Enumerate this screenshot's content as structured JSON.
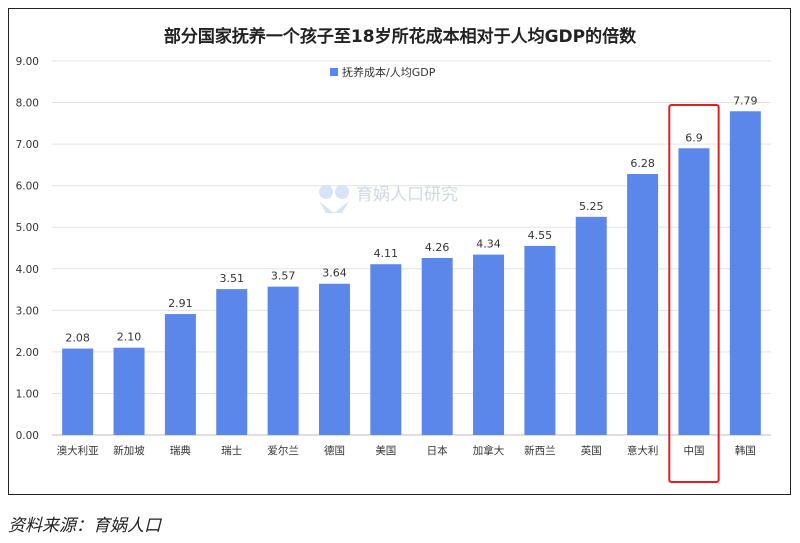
{
  "colors": {
    "bar": "#5b86ea",
    "highlight": "#e02020",
    "grid": "#e3e3e3",
    "axis": "#bdbdbd",
    "text": "#333333"
  },
  "chart_data": {
    "type": "bar",
    "title": "部分国家抚养一个孩子至18岁所花成本相对于人均GDP的倍数",
    "legend": "抚养成本/人均GDP",
    "legend_position": "top",
    "categories": [
      "澳大利亚",
      "新加坡",
      "瑞典",
      "瑞士",
      "爱尔兰",
      "德国",
      "美国",
      "日本",
      "加拿大",
      "新西兰",
      "英国",
      "意大利",
      "中国",
      "韩国"
    ],
    "values": [
      2.08,
      2.1,
      2.91,
      3.51,
      3.57,
      3.64,
      4.11,
      4.26,
      4.34,
      4.55,
      5.25,
      6.28,
      6.9,
      7.79
    ],
    "value_labels": [
      "2.08",
      "2.10",
      "2.91",
      "3.51",
      "3.57",
      "3.64",
      "4.11",
      "4.26",
      "4.34",
      "4.55",
      "5.25",
      "6.28",
      "6.9",
      "7.79"
    ],
    "ylim": [
      0,
      9
    ],
    "yticks": [
      "0.00",
      "1.00",
      "2.00",
      "3.00",
      "4.00",
      "5.00",
      "6.00",
      "7.00",
      "8.00",
      "9.00"
    ],
    "grid": "horizontal",
    "highlighted_category": "中国"
  },
  "watermark": {
    "text": "育娲人口研究"
  },
  "source": "资料来源：育娲人口"
}
